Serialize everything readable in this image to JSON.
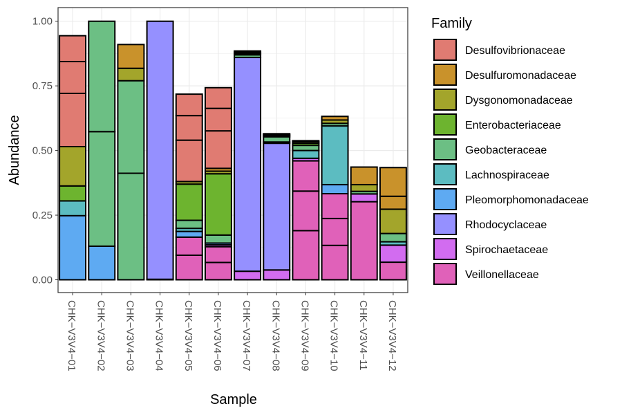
{
  "chart_data": {
    "type": "bar",
    "stacked": true,
    "xlabel": "Sample",
    "ylabel": "Abundance",
    "ylim": [
      0,
      1.05
    ],
    "yticks": [
      0.0,
      0.25,
      0.5,
      0.75,
      1.0
    ],
    "ytick_labels": [
      "0.00",
      "0.25",
      "0.50",
      "0.75",
      "1.00"
    ],
    "grid": true,
    "legend_position": "right",
    "legend_title": "Family",
    "families": [
      {
        "name": "Desulfovibrionaceae",
        "color": "#E07B72"
      },
      {
        "name": "Desulfuromonadaceae",
        "color": "#C9922B"
      },
      {
        "name": "Dysgonomonadaceae",
        "color": "#A3A52B"
      },
      {
        "name": "Enterobacteriaceae",
        "color": "#6DB42F"
      },
      {
        "name": "Geobacteraceae",
        "color": "#6CBF84"
      },
      {
        "name": "Lachnospiraceae",
        "color": "#5CBCC1"
      },
      {
        "name": "Pleomorphomonadaceae",
        "color": "#5EAAF2"
      },
      {
        "name": "Rhodocyclaceae",
        "color": "#9590FF"
      },
      {
        "name": "Spirochaetaceae",
        "color": "#D26CF0"
      },
      {
        "name": "Veillonellaceae",
        "color": "#E061B9"
      }
    ],
    "samples": [
      {
        "name": "CHK−V3V4−01",
        "segments": [
          {
            "family": "Pleomorphomonadaceae",
            "value": 0.248
          },
          {
            "family": "Lachnospiraceae",
            "value": 0.057
          },
          {
            "family": "Enterobacteriaceae",
            "value": 0.058
          },
          {
            "family": "Dysgonomonadaceae",
            "value": 0.152
          },
          {
            "family": "Desulfovibrionaceae",
            "value": 0.206
          },
          {
            "family": "Desulfovibrionaceae",
            "value": 0.123
          },
          {
            "family": "Desulfovibrionaceae",
            "value": 0.1
          }
        ]
      },
      {
        "name": "CHK−V3V4−02",
        "segments": [
          {
            "family": "Pleomorphomonadaceae",
            "value": 0.13
          },
          {
            "family": "Geobacteraceae",
            "value": 0.443
          },
          {
            "family": "Geobacteraceae",
            "value": 0.427
          }
        ]
      },
      {
        "name": "CHK−V3V4−03",
        "segments": [
          {
            "family": "Geobacteraceae",
            "value": 0.412
          },
          {
            "family": "Geobacteraceae",
            "value": 0.358
          },
          {
            "family": "Dysgonomonadaceae",
            "value": 0.048
          },
          {
            "family": "Desulfuromonadaceae",
            "value": 0.092
          }
        ]
      },
      {
        "name": "CHK−V3V4−04",
        "segments": [
          {
            "family": "Rhodocyclaceae",
            "value": 0.002
          },
          {
            "family": "Rhodocyclaceae",
            "value": 0.998
          }
        ]
      },
      {
        "name": "CHK−V3V4−05",
        "segments": [
          {
            "family": "Veillonellaceae",
            "value": 0.095
          },
          {
            "family": "Veillonellaceae",
            "value": 0.07
          },
          {
            "family": "Pleomorphomonadaceae",
            "value": 0.022
          },
          {
            "family": "Lachnospiraceae",
            "value": 0.012
          },
          {
            "family": "Geobacteraceae",
            "value": 0.031
          },
          {
            "family": "Enterobacteriaceae",
            "value": 0.14
          },
          {
            "family": "Dysgonomonadaceae",
            "value": 0.01
          },
          {
            "family": "Desulfovibrionaceae",
            "value": 0.16
          },
          {
            "family": "Desulfovibrionaceae",
            "value": 0.095
          },
          {
            "family": "Desulfovibrionaceae",
            "value": 0.083
          }
        ]
      },
      {
        "name": "CHK−V3V4−06",
        "segments": [
          {
            "family": "Veillonellaceae",
            "value": 0.067
          },
          {
            "family": "Veillonellaceae",
            "value": 0.061
          },
          {
            "family": "Spirochaetaceae",
            "value": 0.007
          },
          {
            "family": "Pleomorphomonadaceae",
            "value": 0.007
          },
          {
            "family": "Geobacteraceae",
            "value": 0.031
          },
          {
            "family": "Enterobacteriaceae",
            "value": 0.237
          },
          {
            "family": "Dysgonomonadaceae",
            "value": 0.01
          },
          {
            "family": "Desulfuromonadaceae",
            "value": 0.011
          },
          {
            "family": "Desulfovibrionaceae",
            "value": 0.145
          },
          {
            "family": "Desulfovibrionaceae",
            "value": 0.087
          },
          {
            "family": "Desulfovibrionaceae",
            "value": 0.08
          }
        ]
      },
      {
        "name": "CHK−V3V4−07",
        "segments": [
          {
            "family": "Spirochaetaceae",
            "value": 0.033
          },
          {
            "family": "Rhodocyclaceae",
            "value": 0.827
          },
          {
            "family": "Geobacteraceae",
            "value": 0.01
          },
          {
            "family": "Enterobacteriaceae",
            "value": 0.005
          },
          {
            "family": "Dysgonomonadaceae",
            "value": 0.005
          },
          {
            "family": "Desulfuromonadaceae",
            "value": 0.005
          }
        ]
      },
      {
        "name": "CHK−V3V4−08",
        "segments": [
          {
            "family": "Spirochaetaceae",
            "value": 0.038
          },
          {
            "family": "Rhodocyclaceae",
            "value": 0.49
          },
          {
            "family": "Lachnospiraceae",
            "value": 0.005
          },
          {
            "family": "Geobacteraceae",
            "value": 0.02
          },
          {
            "family": "Enterobacteriaceae",
            "value": 0.005
          },
          {
            "family": "Dysgonomonadaceae",
            "value": 0.004
          },
          {
            "family": "Desulfuromonadaceae",
            "value": 0.003
          }
        ]
      },
      {
        "name": "CHK−V3V4−09",
        "segments": [
          {
            "family": "Veillonellaceae",
            "value": 0.19
          },
          {
            "family": "Veillonellaceae",
            "value": 0.153
          },
          {
            "family": "Veillonellaceae",
            "value": 0.117
          },
          {
            "family": "Spirochaetaceae",
            "value": 0.01
          },
          {
            "family": "Lachnospiraceae",
            "value": 0.03
          },
          {
            "family": "Geobacteraceae",
            "value": 0.02
          },
          {
            "family": "Enterobacteriaceae",
            "value": 0.008
          },
          {
            "family": "Dysgonomonadaceae",
            "value": 0.006
          },
          {
            "family": "Desulfuromonadaceae",
            "value": 0.004
          }
        ]
      },
      {
        "name": "CHK−V3V4−10",
        "segments": [
          {
            "family": "Veillonellaceae",
            "value": 0.133
          },
          {
            "family": "Veillonellaceae",
            "value": 0.104
          },
          {
            "family": "Veillonellaceae",
            "value": 0.096
          },
          {
            "family": "Pleomorphomonadaceae",
            "value": 0.035
          },
          {
            "family": "Lachnospiraceae",
            "value": 0.227
          },
          {
            "family": "Geobacteraceae",
            "value": 0.01
          },
          {
            "family": "Dysgonomonadaceae",
            "value": 0.013
          },
          {
            "family": "Desulfuromonadaceae",
            "value": 0.014
          }
        ]
      },
      {
        "name": "CHK−V3V4−11",
        "segments": [
          {
            "family": "Veillonellaceae",
            "value": 0.302
          },
          {
            "family": "Spirochaetaceae",
            "value": 0.03
          },
          {
            "family": "Geobacteraceae",
            "value": 0.01
          },
          {
            "family": "Dysgonomonadaceae",
            "value": 0.026
          },
          {
            "family": "Desulfuromonadaceae",
            "value": 0.068
          }
        ]
      },
      {
        "name": "CHK−V3V4−12",
        "segments": [
          {
            "family": "Veillonellaceae",
            "value": 0.068
          },
          {
            "family": "Spirochaetaceae",
            "value": 0.066
          },
          {
            "family": "Lachnospiraceae",
            "value": 0.013
          },
          {
            "family": "Geobacteraceae",
            "value": 0.032
          },
          {
            "family": "Dysgonomonadaceae",
            "value": 0.094
          },
          {
            "family": "Desulfuromonadaceae",
            "value": 0.05
          },
          {
            "family": "Desulfuromonadaceae",
            "value": 0.111
          }
        ]
      }
    ]
  }
}
